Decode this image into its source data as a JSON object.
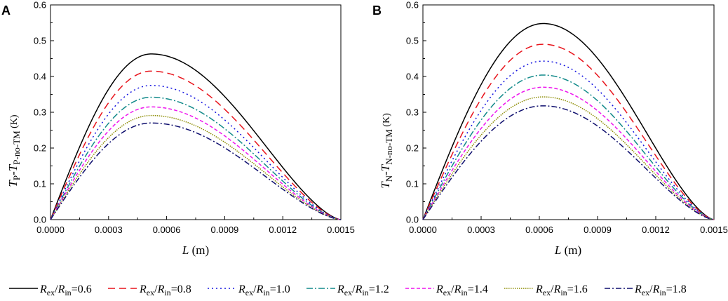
{
  "chart_data": [
    {
      "type": "line",
      "panel": "A",
      "xlim": [
        0,
        0.0015
      ],
      "ylim": [
        0,
        0.6
      ],
      "xticks": [
        "0.0000",
        "0.0003",
        "0.0006",
        "0.0009",
        "0.0012",
        "0.0015"
      ],
      "yticks": [
        "0.0",
        "0.1",
        "0.2",
        "0.3",
        "0.4",
        "0.5",
        "0.6"
      ],
      "xlabel": {
        "var": "L",
        "unit": " (m)"
      },
      "ylabel": {
        "t1": "T",
        "s1": "P",
        "mid": "-",
        "t2": "T",
        "s2": "P-no-TM",
        "unit": " (K)"
      },
      "peak_x": 0.00052,
      "series": [
        {
          "name": "Rex/Rin=0.6",
          "peak": 0.463
        },
        {
          "name": "Rex/Rin=0.8",
          "peak": 0.415
        },
        {
          "name": "Rex/Rin=1.0",
          "peak": 0.375
        },
        {
          "name": "Rex/Rin=1.2",
          "peak": 0.342
        },
        {
          "name": "Rex/Rin=1.4",
          "peak": 0.315
        },
        {
          "name": "Rex/Rin=1.6",
          "peak": 0.291
        },
        {
          "name": "Rex/Rin=1.8",
          "peak": 0.27
        }
      ]
    },
    {
      "type": "line",
      "panel": "B",
      "xlim": [
        0,
        0.0015
      ],
      "ylim": [
        0,
        0.6
      ],
      "xticks": [
        "0.0000",
        "0.0003",
        "0.0006",
        "0.0009",
        "0.0012",
        "0.0015"
      ],
      "yticks": [
        "0.0",
        "0.1",
        "0.2",
        "0.3",
        "0.4",
        "0.5",
        "0.6"
      ],
      "xlabel": {
        "var": "L",
        "unit": " (m)"
      },
      "ylabel": {
        "t1": "T",
        "s1": "N",
        "mid": "-",
        "t2": "T",
        "s2": "N-no-TM",
        "unit": " (K)"
      },
      "peak_x": 0.00062,
      "series": [
        {
          "name": "Rex/Rin=0.6",
          "peak": 0.548
        },
        {
          "name": "Rex/Rin=0.8",
          "peak": 0.49
        },
        {
          "name": "Rex/Rin=1.0",
          "peak": 0.443
        },
        {
          "name": "Rex/Rin=1.2",
          "peak": 0.404
        },
        {
          "name": "Rex/Rin=1.4",
          "peak": 0.37
        },
        {
          "name": "Rex/Rin=1.6",
          "peak": 0.343
        },
        {
          "name": "Rex/Rin=1.8",
          "peak": 0.318
        }
      ]
    }
  ],
  "legend": {
    "entries": [
      {
        "name": "Rex/Rin=0.6",
        "num": "R",
        "numsub": "ex",
        "slash": "/",
        "den": "R",
        "densub": "in",
        "value": "=0.6",
        "color": "#000000",
        "dash": "none"
      },
      {
        "name": "Rex/Rin=0.8",
        "num": "R",
        "numsub": "ex",
        "slash": "/",
        "den": "R",
        "densub": "in",
        "value": "=0.8",
        "color": "#e8141c",
        "dash": "10,6"
      },
      {
        "name": "Rex/Rin=1.0",
        "num": "R",
        "numsub": "ex",
        "slash": "/",
        "den": "R",
        "densub": "in",
        "value": "=1.0",
        "color": "#1414e0",
        "dash": "2,4"
      },
      {
        "name": "Rex/Rin=1.2",
        "num": "R",
        "numsub": "ex",
        "slash": "/",
        "den": "R",
        "densub": "in",
        "value": "=1.2",
        "color": "#128a8a",
        "dash": "9,3,2,3"
      },
      {
        "name": "Rex/Rin=1.4",
        "num": "R",
        "numsub": "ex",
        "slash": "/",
        "den": "R",
        "densub": "in",
        "value": "=1.4",
        "color": "#ee14ee",
        "dash": "5,3"
      },
      {
        "name": "Rex/Rin=1.6",
        "num": "R",
        "numsub": "ex",
        "slash": "/",
        "den": "R",
        "densub": "in",
        "value": "=1.6",
        "color": "#8b8b00",
        "dash": "1.5,1.5"
      },
      {
        "name": "Rex/Rin=1.8",
        "num": "R",
        "numsub": "ex",
        "slash": "/",
        "den": "R",
        "densub": "in",
        "value": "=1.8",
        "color": "#0f0f6e",
        "dash": "8,3,2,3"
      }
    ]
  }
}
